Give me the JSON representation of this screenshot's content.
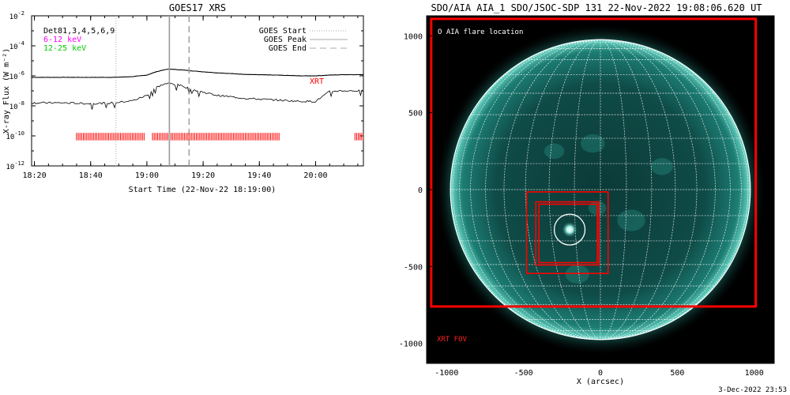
{
  "chart_data": [
    {
      "type": "line",
      "title": "GOES17 XRS",
      "xlabel": "Start Time (22-Nov-22 18:19:00)",
      "ylabel": "X-ray Flux (W m⁻²)",
      "y_scale": "log",
      "ylim": [
        "1e-12",
        "1e-2"
      ],
      "xlim": [
        "18:19",
        "20:17"
      ],
      "x_ticks": [
        "18:20",
        "18:40",
        "19:00",
        "19:20",
        "19:40",
        "20:00"
      ],
      "y_ticks": [
        {
          "base": "10",
          "exp": "-2"
        },
        {
          "base": "10",
          "exp": "-4"
        },
        {
          "base": "10",
          "exp": "-6"
        },
        {
          "base": "10",
          "exp": "-8"
        },
        {
          "base": "10",
          "exp": "-10"
        },
        {
          "base": "10",
          "exp": "-12"
        }
      ],
      "legend_left": [
        {
          "text": "Det81,3,4,5,6,9",
          "color": "#000000"
        },
        {
          "text": "6-12 keV",
          "color": "#ff00ff"
        },
        {
          "text": "12-25 keV",
          "color": "#00cc00"
        }
      ],
      "legend_right": [
        {
          "text": "GOES Start",
          "style": "dotted",
          "color": "#aaaaaa"
        },
        {
          "text": "GOES Peak",
          "style": "solid",
          "color": "#aaaaaa"
        },
        {
          "text": "GOES End",
          "style": "dashed",
          "color": "#aaaaaa"
        }
      ],
      "annotation": {
        "text": "XRT",
        "color": "#ff0000"
      },
      "markers": {
        "goes_start": "18:49",
        "goes_peak": "19:08",
        "goes_end": "19:15"
      },
      "series": [
        {
          "x": [
            "18:19",
            "18:30",
            "18:40",
            "18:48",
            "18:55",
            "19:00",
            "19:03",
            "19:06",
            "19:08",
            "19:12",
            "19:18",
            "19:25",
            "19:35",
            "19:45",
            "19:55",
            "20:00",
            "20:05",
            "20:10",
            "20:17"
          ],
          "log10_y": [
            -6.1,
            -6.1,
            -6.1,
            -6.1,
            -6.05,
            -5.95,
            -5.75,
            -5.6,
            -5.55,
            -5.6,
            -5.7,
            -5.8,
            -5.9,
            -5.95,
            -6.0,
            -6.0,
            -5.95,
            -5.92,
            -5.92
          ]
        },
        {
          "x": [
            "18:19",
            "18:30",
            "18:40",
            "18:48",
            "18:55",
            "19:00",
            "19:03",
            "19:06",
            "19:08",
            "19:12",
            "19:18",
            "19:25",
            "19:35",
            "19:45",
            "19:55",
            "20:00",
            "20:03",
            "20:05",
            "20:08",
            "20:17"
          ],
          "log10_y": [
            -7.8,
            -7.8,
            -7.85,
            -7.8,
            -7.65,
            -7.3,
            -6.8,
            -6.55,
            -6.5,
            -6.65,
            -7.0,
            -7.3,
            -7.5,
            -7.6,
            -7.7,
            -7.7,
            -7.3,
            -7.05,
            -7.0,
            -7.0
          ]
        }
      ],
      "xrt_observation_intervals": [
        [
          "18:35",
          "18:59"
        ],
        [
          "19:02",
          "19:47"
        ],
        [
          "20:14",
          "20:17"
        ]
      ]
    },
    {
      "type": "image",
      "title": "SDO/AIA AIA_1 SDO/JSOC-SDP 131 22-Nov-2022 19:08:06.620 UT",
      "xlabel": "X (arcsec)",
      "xlim": [
        -1130,
        1130
      ],
      "ylim": [
        -1130,
        1130
      ],
      "x_ticks": [
        "-1000",
        "-500",
        "0",
        "500",
        "1000"
      ],
      "y_ticks": [
        "1000",
        "500",
        "0",
        "-500",
        "-1000"
      ],
      "legend": "O AIA flare location",
      "xrt_fov_label": "XRT FOV",
      "xrt_fov_box": {
        "x": [
          -1100,
          1010
        ],
        "y": [
          -760,
          1110
        ]
      },
      "xrt_small_boxes": [
        {
          "x": [
            -480,
            50
          ],
          "y": [
            -545,
            -15
          ]
        },
        {
          "x": [
            -420,
            -10
          ],
          "y": [
            -490,
            -80
          ]
        },
        {
          "x": [
            -400,
            -20
          ],
          "y": [
            -475,
            -95
          ]
        }
      ],
      "flare_location": {
        "x": -200,
        "y": -260,
        "radius": 100
      },
      "solar_radius_arcsec": 975,
      "footer_date": "3-Dec-2022 23:53"
    }
  ]
}
